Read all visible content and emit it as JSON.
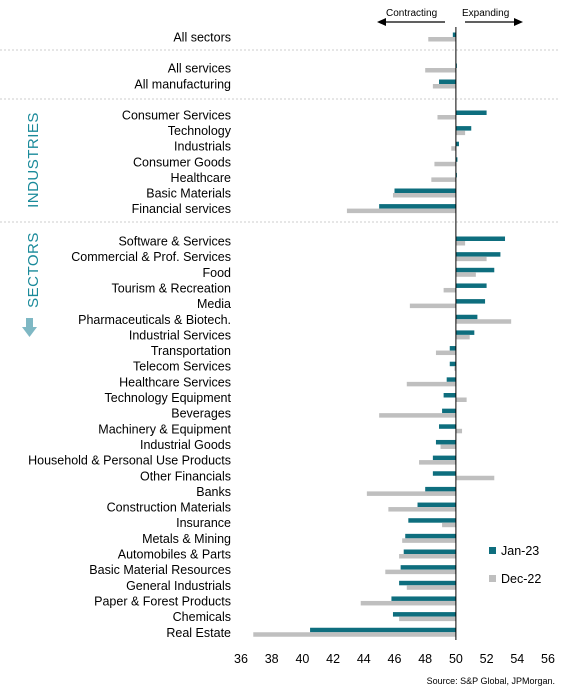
{
  "chart_data": {
    "type": "bar",
    "orientation": "horizontal",
    "header": {
      "left": "Contracting",
      "right": "Expanding"
    },
    "group_labels": {
      "industries": "INDUSTRIES",
      "sectors": "SECTORS"
    },
    "xlim": [
      36,
      56
    ],
    "baseline": 50,
    "xticks": [
      36,
      38,
      40,
      42,
      44,
      46,
      48,
      50,
      52,
      54,
      56
    ],
    "legend": {
      "position": "bottom-right"
    },
    "series": [
      {
        "name": "Jan-23",
        "color": "#0e6e7e"
      },
      {
        "name": "Dec-22",
        "color": "#bfbfbf"
      }
    ],
    "categories": [
      {
        "label": "All sectors",
        "jan": 49.8,
        "dec": 48.2
      },
      {
        "label": "All services",
        "jan": 50.0,
        "dec": 48.0
      },
      {
        "label": "All manufacturing",
        "jan": 48.9,
        "dec": 48.5
      },
      {
        "label": "Consumer Services",
        "jan": 52.0,
        "dec": 48.8
      },
      {
        "label": "Technology",
        "jan": 51.0,
        "dec": 50.6
      },
      {
        "label": "Industrials",
        "jan": 50.2,
        "dec": 49.7
      },
      {
        "label": "Consumer Goods",
        "jan": 50.1,
        "dec": 48.6
      },
      {
        "label": "Healthcare",
        "jan": 50.0,
        "dec": 48.4
      },
      {
        "label": "Basic Materials",
        "jan": 46.0,
        "dec": 45.9
      },
      {
        "label": "Financial services",
        "jan": 45.0,
        "dec": 42.9
      },
      {
        "label": "Software & Services",
        "jan": 53.2,
        "dec": 50.6
      },
      {
        "label": "Commercial & Prof. Services",
        "jan": 52.9,
        "dec": 52.0
      },
      {
        "label": "Food",
        "jan": 52.5,
        "dec": 51.3
      },
      {
        "label": "Tourism & Recreation",
        "jan": 52.0,
        "dec": 49.2
      },
      {
        "label": "Media",
        "jan": 51.9,
        "dec": 47.0
      },
      {
        "label": "Pharmaceuticals & Biotech.",
        "jan": 51.4,
        "dec": 53.6
      },
      {
        "label": "Industrial Services",
        "jan": 51.2,
        "dec": 50.9
      },
      {
        "label": "Transportation",
        "jan": 49.6,
        "dec": 48.7
      },
      {
        "label": "Telecom Services",
        "jan": 49.6,
        "dec": 49.9
      },
      {
        "label": "Healthcare Services",
        "jan": 49.4,
        "dec": 46.8
      },
      {
        "label": "Technology Equipment",
        "jan": 49.2,
        "dec": 50.7
      },
      {
        "label": "Beverages",
        "jan": 49.1,
        "dec": 45.0
      },
      {
        "label": "Machinery & Equipment",
        "jan": 48.9,
        "dec": 50.4
      },
      {
        "label": "Industrial Goods",
        "jan": 48.7,
        "dec": 49.0
      },
      {
        "label": "Household & Personal Use Products",
        "jan": 48.5,
        "dec": 47.6
      },
      {
        "label": "Other Financials",
        "jan": 48.5,
        "dec": 52.5
      },
      {
        "label": "Banks",
        "jan": 48.0,
        "dec": 44.2
      },
      {
        "label": "Construction Materials",
        "jan": 47.5,
        "dec": 45.6
      },
      {
        "label": "Insurance",
        "jan": 46.9,
        "dec": 49.1
      },
      {
        "label": "Metals & Mining",
        "jan": 46.7,
        "dec": 46.5
      },
      {
        "label": "Automobiles & Parts",
        "jan": 46.6,
        "dec": 46.3
      },
      {
        "label": "Basic Material Resources",
        "jan": 46.4,
        "dec": 45.4
      },
      {
        "label": "General Industrials",
        "jan": 46.3,
        "dec": 46.8
      },
      {
        "label": "Paper & Forest Products",
        "jan": 45.8,
        "dec": 43.8
      },
      {
        "label": "Chemicals",
        "jan": 45.9,
        "dec": 46.3
      },
      {
        "label": "Real Estate",
        "jan": 40.5,
        "dec": 36.8
      }
    ],
    "source": "Source: S&P Global, JPMorgan."
  }
}
